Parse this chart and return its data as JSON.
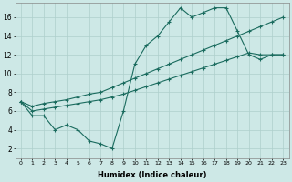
{
  "xlabel": "Humidex (Indice chaleur)",
  "xlim": [
    -0.5,
    23.5
  ],
  "ylim": [
    1.0,
    17.5
  ],
  "yticks": [
    2,
    4,
    6,
    8,
    10,
    12,
    14,
    16
  ],
  "xticks": [
    0,
    1,
    2,
    3,
    4,
    5,
    6,
    7,
    8,
    9,
    10,
    11,
    12,
    13,
    14,
    15,
    16,
    17,
    18,
    19,
    20,
    21,
    22,
    23
  ],
  "bg_color": "#cde8e6",
  "line_color": "#1a6b5e",
  "grid_color": "#aecfcc",
  "line1_x": [
    0,
    1,
    2,
    3,
    4,
    5,
    6,
    7,
    8,
    9,
    10,
    11,
    12,
    13,
    14,
    15,
    16,
    17,
    18,
    19,
    20,
    21,
    22,
    23
  ],
  "line1_y": [
    7.0,
    5.5,
    5.5,
    4.0,
    4.5,
    4.0,
    2.8,
    2.5,
    2.0,
    6.0,
    11.0,
    13.0,
    14.0,
    15.5,
    17.0,
    16.0,
    16.5,
    17.0,
    17.0,
    14.5,
    12.0,
    11.5,
    12.0,
    12.0
  ],
  "line2_x": [
    0,
    1,
    2,
    3,
    4,
    5,
    6,
    7,
    8,
    9,
    10,
    11,
    12,
    13,
    14,
    15,
    16,
    17,
    18,
    19,
    20,
    21,
    22,
    23
  ],
  "line2_y": [
    7.0,
    6.5,
    6.8,
    7.0,
    7.2,
    7.5,
    7.8,
    8.0,
    8.5,
    9.0,
    9.5,
    10.0,
    10.5,
    11.0,
    11.5,
    12.0,
    12.5,
    13.0,
    13.5,
    14.0,
    14.5,
    15.0,
    15.5,
    16.0
  ],
  "line3_x": [
    0,
    1,
    2,
    3,
    4,
    5,
    6,
    7,
    8,
    9,
    10,
    11,
    12,
    13,
    14,
    15,
    16,
    17,
    18,
    19,
    20,
    21,
    22,
    23
  ],
  "line3_y": [
    7.0,
    6.0,
    6.2,
    6.4,
    6.6,
    6.8,
    7.0,
    7.2,
    7.5,
    7.8,
    8.2,
    8.6,
    9.0,
    9.4,
    9.8,
    10.2,
    10.6,
    11.0,
    11.4,
    11.8,
    12.2,
    12.0,
    12.0,
    12.0
  ]
}
